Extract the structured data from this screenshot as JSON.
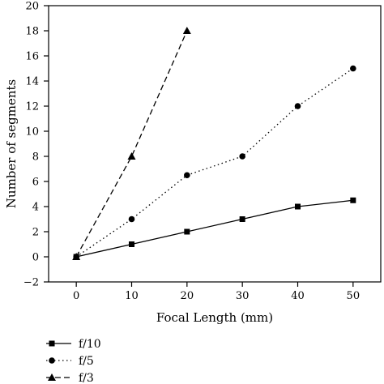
{
  "chart_data": {
    "type": "line",
    "xlabel": "Focal Length (mm)",
    "ylabel": "Number of segments",
    "xlim": [
      -5,
      55
    ],
    "ylim": [
      -2,
      20
    ],
    "xticks": [
      0,
      10,
      20,
      30,
      40,
      50
    ],
    "yticks": [
      -2,
      0,
      2,
      4,
      6,
      8,
      10,
      12,
      14,
      16,
      18,
      20
    ],
    "grid": false,
    "legend_position": "bottom-left, below plot",
    "series": [
      {
        "name": "f/10",
        "marker": "square",
        "line_style": "solid",
        "x": [
          0,
          10,
          20,
          30,
          40,
          50
        ],
        "y": [
          0,
          1,
          2,
          3,
          4,
          4.5
        ]
      },
      {
        "name": "f/5",
        "marker": "circle",
        "line_style": "dotted",
        "x": [
          0,
          10,
          20,
          30,
          40,
          50
        ],
        "y": [
          0,
          3,
          6.5,
          8,
          12,
          15
        ]
      },
      {
        "name": "f/3",
        "marker": "triangle",
        "line_style": "dashed",
        "x": [
          0,
          10,
          20
        ],
        "y": [
          0,
          8,
          18
        ]
      }
    ]
  }
}
